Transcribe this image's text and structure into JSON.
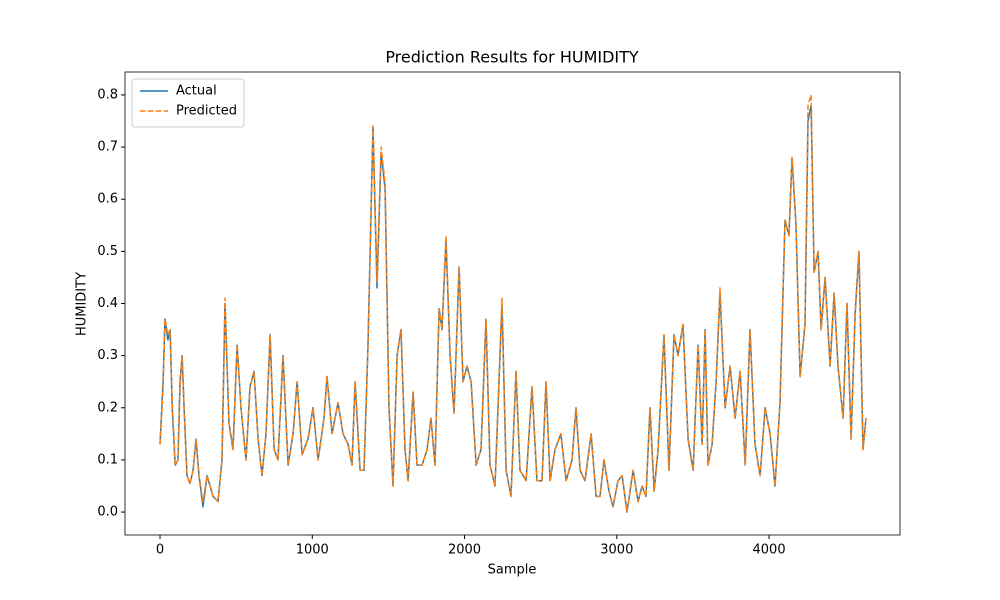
{
  "chart_data": {
    "type": "line",
    "title": "Prediction Results for HUMIDITY",
    "x_label": "Sample",
    "y_label": "HUMIDITY",
    "x": [
      0,
      20,
      33,
      52,
      66,
      80,
      100,
      118,
      131,
      145,
      158,
      177,
      197,
      217,
      236,
      256,
      282,
      309,
      328,
      348,
      381,
      407,
      427,
      453,
      479,
      506,
      532,
      565,
      591,
      617,
      644,
      670,
      696,
      723,
      749,
      775,
      808,
      841,
      874,
      900,
      933,
      972,
      1005,
      1038,
      1077,
      1097,
      1130,
      1169,
      1202,
      1235,
      1261,
      1281,
      1314,
      1340,
      1366,
      1399,
      1425,
      1452,
      1478,
      1504,
      1530,
      1557,
      1583,
      1609,
      1629,
      1662,
      1688,
      1721,
      1754,
      1780,
      1806,
      1833,
      1852,
      1878,
      1905,
      1931,
      1964,
      1990,
      2016,
      2043,
      2076,
      2108,
      2141,
      2167,
      2200,
      2246,
      2273,
      2305,
      2338,
      2364,
      2404,
      2443,
      2476,
      2509,
      2535,
      2562,
      2594,
      2633,
      2667,
      2706,
      2732,
      2759,
      2791,
      2831,
      2864,
      2890,
      2916,
      2949,
      2975,
      3008,
      3035,
      3067,
      3107,
      3140,
      3166,
      3192,
      3218,
      3245,
      3271,
      3310,
      3343,
      3376,
      3402,
      3435,
      3468,
      3501,
      3534,
      3560,
      3580,
      3599,
      3626,
      3652,
      3678,
      3711,
      3744,
      3777,
      3810,
      3843,
      3875,
      3908,
      3941,
      3974,
      4007,
      4039,
      4072,
      4105,
      4131,
      4151,
      4177,
      4204,
      4236,
      4256,
      4276,
      4296,
      4322,
      4342,
      4368,
      4401,
      4427,
      4453,
      4486,
      4512,
      4539,
      4565,
      4591,
      4617,
      4637
    ],
    "series": [
      {
        "name": "Actual",
        "color": "#1f77b4",
        "dash": false,
        "values": [
          0.13,
          0.25,
          0.37,
          0.33,
          0.35,
          0.2,
          0.09,
          0.1,
          0.25,
          0.3,
          0.2,
          0.07,
          0.055,
          0.08,
          0.14,
          0.07,
          0.01,
          0.07,
          0.05,
          0.03,
          0.02,
          0.1,
          0.4,
          0.17,
          0.12,
          0.32,
          0.2,
          0.1,
          0.24,
          0.27,
          0.14,
          0.07,
          0.15,
          0.34,
          0.12,
          0.1,
          0.3,
          0.09,
          0.15,
          0.25,
          0.11,
          0.14,
          0.2,
          0.1,
          0.18,
          0.26,
          0.15,
          0.21,
          0.15,
          0.13,
          0.09,
          0.25,
          0.08,
          0.08,
          0.32,
          0.74,
          0.43,
          0.69,
          0.62,
          0.2,
          0.05,
          0.3,
          0.35,
          0.12,
          0.06,
          0.23,
          0.09,
          0.09,
          0.12,
          0.18,
          0.09,
          0.39,
          0.35,
          0.52,
          0.3,
          0.19,
          0.47,
          0.25,
          0.28,
          0.25,
          0.09,
          0.12,
          0.37,
          0.09,
          0.05,
          0.4,
          0.08,
          0.03,
          0.27,
          0.08,
          0.06,
          0.24,
          0.06,
          0.06,
          0.25,
          0.06,
          0.12,
          0.15,
          0.06,
          0.1,
          0.2,
          0.08,
          0.06,
          0.15,
          0.03,
          0.03,
          0.1,
          0.04,
          0.01,
          0.06,
          0.07,
          0.0,
          0.08,
          0.02,
          0.05,
          0.03,
          0.2,
          0.04,
          0.12,
          0.34,
          0.08,
          0.34,
          0.3,
          0.36,
          0.14,
          0.08,
          0.32,
          0.13,
          0.35,
          0.09,
          0.13,
          0.25,
          0.42,
          0.2,
          0.28,
          0.18,
          0.27,
          0.09,
          0.35,
          0.13,
          0.07,
          0.2,
          0.15,
          0.05,
          0.21,
          0.56,
          0.53,
          0.68,
          0.55,
          0.26,
          0.36,
          0.75,
          0.78,
          0.46,
          0.5,
          0.35,
          0.45,
          0.28,
          0.42,
          0.28,
          0.18,
          0.4,
          0.14,
          0.38,
          0.5,
          0.12,
          0.18
        ]
      },
      {
        "name": "Predicted",
        "color": "#ff7f0e",
        "dash": true,
        "values": [
          0.13,
          0.24,
          0.37,
          0.34,
          0.35,
          0.21,
          0.09,
          0.1,
          0.24,
          0.3,
          0.2,
          0.07,
          0.055,
          0.08,
          0.14,
          0.07,
          0.02,
          0.07,
          0.05,
          0.03,
          0.02,
          0.1,
          0.41,
          0.17,
          0.12,
          0.32,
          0.2,
          0.1,
          0.24,
          0.27,
          0.14,
          0.07,
          0.15,
          0.34,
          0.12,
          0.1,
          0.3,
          0.09,
          0.15,
          0.25,
          0.11,
          0.14,
          0.2,
          0.1,
          0.18,
          0.26,
          0.15,
          0.21,
          0.15,
          0.13,
          0.09,
          0.25,
          0.08,
          0.08,
          0.32,
          0.74,
          0.44,
          0.7,
          0.63,
          0.2,
          0.05,
          0.3,
          0.35,
          0.12,
          0.06,
          0.23,
          0.09,
          0.09,
          0.12,
          0.18,
          0.09,
          0.39,
          0.35,
          0.53,
          0.3,
          0.19,
          0.47,
          0.25,
          0.28,
          0.25,
          0.09,
          0.12,
          0.37,
          0.09,
          0.05,
          0.41,
          0.08,
          0.03,
          0.27,
          0.08,
          0.06,
          0.24,
          0.06,
          0.06,
          0.25,
          0.06,
          0.12,
          0.15,
          0.06,
          0.1,
          0.2,
          0.08,
          0.06,
          0.15,
          0.03,
          0.03,
          0.1,
          0.04,
          0.01,
          0.06,
          0.07,
          0.0,
          0.08,
          0.02,
          0.05,
          0.03,
          0.2,
          0.04,
          0.12,
          0.34,
          0.08,
          0.34,
          0.3,
          0.36,
          0.14,
          0.08,
          0.32,
          0.13,
          0.35,
          0.09,
          0.13,
          0.25,
          0.43,
          0.2,
          0.28,
          0.18,
          0.27,
          0.09,
          0.35,
          0.13,
          0.07,
          0.2,
          0.15,
          0.05,
          0.21,
          0.56,
          0.53,
          0.68,
          0.55,
          0.26,
          0.36,
          0.78,
          0.8,
          0.46,
          0.5,
          0.35,
          0.45,
          0.28,
          0.42,
          0.28,
          0.18,
          0.4,
          0.14,
          0.38,
          0.5,
          0.12,
          0.18
        ]
      }
    ],
    "xlim": [
      -230,
      4860
    ],
    "ylim": [
      -0.044,
      0.844
    ],
    "xticks": [
      0,
      1000,
      2000,
      3000,
      4000
    ],
    "yticks": [
      {
        "value": 0,
        "label": "0.0"
      },
      0.1,
      0.2,
      0.3,
      0.4,
      0.5,
      0.6,
      0.7,
      0.8
    ],
    "legend": "upper left",
    "grid": false
  }
}
